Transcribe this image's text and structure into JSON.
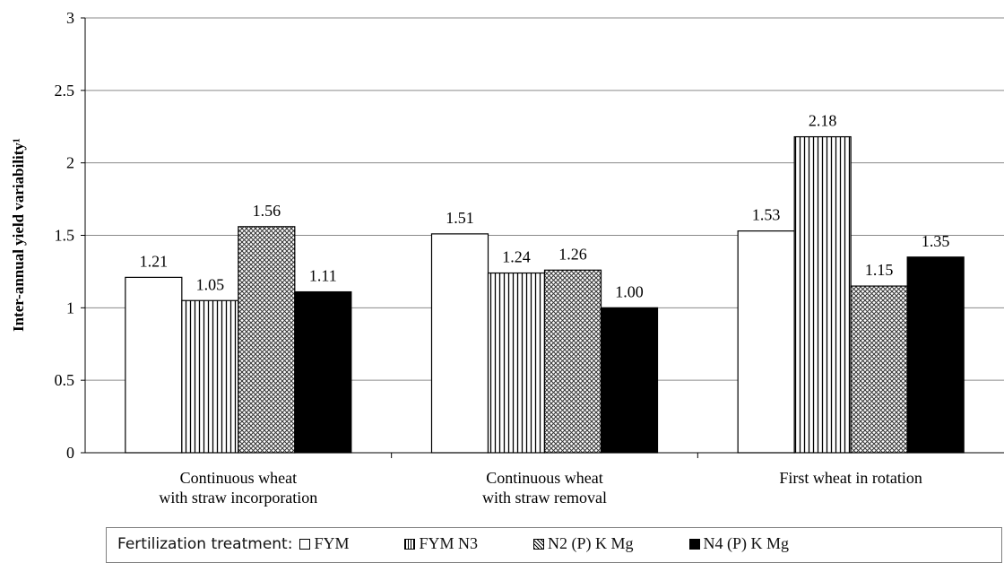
{
  "chart_data": {
    "type": "bar",
    "ylabel": "Inter-annual yield variability¹",
    "ylim": [
      0,
      3
    ],
    "yticks": [
      "0",
      "0.5",
      "1",
      "1.5",
      "2",
      "2.5",
      "3"
    ],
    "grid": true,
    "categories": [
      [
        "Continuous wheat",
        "with straw incorporation"
      ],
      [
        "Continuous wheat",
        "with straw removal"
      ],
      [
        "First wheat in rotation"
      ]
    ],
    "series": [
      {
        "name": "FYM",
        "pattern": "white",
        "values": [
          1.21,
          1.51,
          1.53
        ],
        "labels": [
          "1.21",
          "1.51",
          "1.53"
        ]
      },
      {
        "name": "FYM N3",
        "pattern": "vertical-stripes",
        "values": [
          1.05,
          1.24,
          2.18
        ],
        "labels": [
          "1.05",
          "1.24",
          "2.18"
        ]
      },
      {
        "name": "N2 (P) K Mg",
        "pattern": "crosshatch",
        "values": [
          1.56,
          1.26,
          1.15
        ],
        "labels": [
          "1.56",
          "1.26",
          "1.15"
        ]
      },
      {
        "name": "N4 (P) K Mg",
        "pattern": "black",
        "values": [
          1.11,
          1.0,
          1.35
        ],
        "labels": [
          "1.11",
          "1.00",
          "1.35"
        ]
      }
    ],
    "legend": {
      "title": "Fertilization treatment:",
      "placement": "bottom"
    }
  }
}
